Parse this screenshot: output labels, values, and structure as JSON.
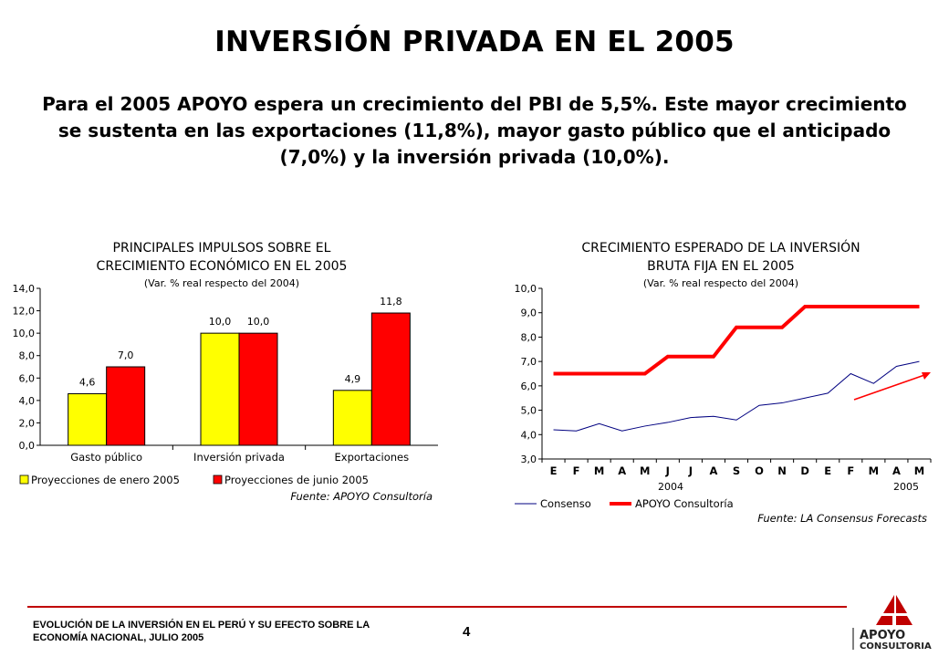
{
  "slide": {
    "title": "INVERSIÓN PRIVADA EN EL 2005",
    "subtitle": "Para el 2005 APOYO espera un crecimiento del PBI de 5,5%. Este mayor crecimiento se sustenta en las exportaciones (11,8%), mayor gasto público que el anticipado (7,0%) y la inversión privada (10,0%).",
    "page_number": "4",
    "footer_line1": "EVOLUCIÓN DE LA INVERSIÓN EN EL PERÚ Y SU EFECTO SOBRE LA",
    "footer_line2": "ECONOMÍA NACIONAL, JULIO 2005",
    "logo_line1": "APOYO",
    "logo_line2": "CONSULTORIA",
    "accent_color": "#c00000"
  },
  "chart_data": [
    {
      "type": "bar",
      "title_lines": [
        "PRINCIPALES IMPULSOS SOBRE EL",
        "CRECIMIENTO ECONÓMICO EN EL 2005",
        "(Var. % real respecto del 2004)"
      ],
      "categories": [
        "Gasto público",
        "Inversión privada",
        "Exportaciones"
      ],
      "series": [
        {
          "name": "Proyecciones de enero 2005",
          "color": "#ffff00",
          "values": [
            4.6,
            10.0,
            4.9
          ],
          "labels": [
            "4,6",
            "10,0",
            "4,9"
          ]
        },
        {
          "name": "Proyecciones de junio 2005",
          "color": "#ff0000",
          "values": [
            7.0,
            10.0,
            11.8
          ],
          "labels": [
            "7,0",
            "10,0",
            "11,8"
          ]
        }
      ],
      "ylim": [
        0,
        14
      ],
      "yticks": [
        "0,0",
        "2,0",
        "4,0",
        "6,0",
        "8,0",
        "10,0",
        "12,0",
        "14,0"
      ],
      "source": "Fuente: APOYO Consultoría",
      "legend_position": "bottom"
    },
    {
      "type": "line",
      "title_lines": [
        "CRECIMIENTO ESPERADO DE LA INVERSIÓN",
        "BRUTA FIJA EN EL 2005",
        "(Var. % real respecto del 2004)"
      ],
      "x": [
        "E",
        "F",
        "M",
        "A",
        "M",
        "J",
        "J",
        "A",
        "S",
        "O",
        "N",
        "D",
        "E",
        "F",
        "M",
        "A",
        "M"
      ],
      "year_labels": [
        "2004",
        "2005"
      ],
      "series": [
        {
          "name": "Consenso",
          "color": "#000080",
          "values": [
            4.2,
            4.15,
            4.45,
            4.15,
            4.35,
            4.5,
            4.7,
            4.75,
            4.6,
            5.2,
            5.3,
            5.5,
            5.7,
            6.5,
            6.1,
            6.8,
            7.0
          ]
        },
        {
          "name": "APOYO Consultoría",
          "color": "#ff0000",
          "values": [
            6.5,
            6.5,
            6.5,
            6.5,
            6.5,
            7.2,
            7.2,
            7.2,
            8.4,
            8.4,
            8.4,
            9.25,
            9.25,
            9.25,
            9.25,
            9.25,
            9.25
          ]
        }
      ],
      "ylim": [
        3,
        10
      ],
      "yticks": [
        "3,0",
        "4,0",
        "5,0",
        "6,0",
        "7,0",
        "8,0",
        "9,0",
        "10,0"
      ],
      "source": "Fuente: LA Consensus Forecasts",
      "legend_position": "bottom",
      "annotation": "trend-arrow"
    }
  ]
}
